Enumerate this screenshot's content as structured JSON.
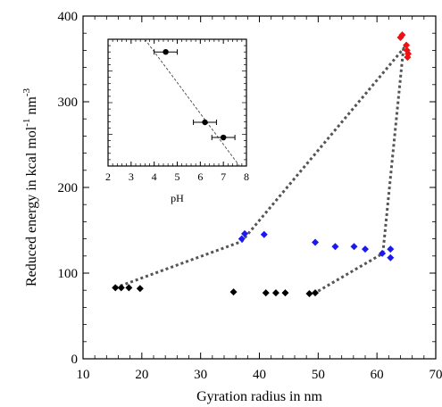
{
  "chart_data": [
    {
      "type": "scatter",
      "xlabel": "Gyration radius in nm",
      "ylabel": {
        "main": "Reduced energy in kcal mol",
        "sup1": "-1",
        "mid": " nm",
        "sup2": "-3"
      },
      "xlim": [
        10,
        70
      ],
      "ylim": [
        0,
        400
      ],
      "xticks": [
        10,
        20,
        30,
        40,
        50,
        60,
        70
      ],
      "yticks": [
        0,
        100,
        200,
        300,
        400
      ],
      "grid": false,
      "series": [
        {
          "color": "#000000",
          "marker": "diamond",
          "points": [
            [
              15.5,
              83
            ],
            [
              16.5,
              83
            ],
            [
              17.8,
              83
            ],
            [
              19.7,
              82
            ],
            [
              35.6,
              78
            ],
            [
              41.1,
              77
            ],
            [
              42.8,
              77
            ],
            [
              44.4,
              77
            ],
            [
              48.5,
              76
            ],
            [
              49.5,
              77
            ]
          ]
        },
        {
          "color": "#1a1aee",
          "marker": "diamond",
          "points": [
            [
              37.0,
              140
            ],
            [
              37.5,
              146
            ],
            [
              40.8,
              145
            ],
            [
              49.5,
              136
            ],
            [
              52.9,
              131
            ],
            [
              56.1,
              131
            ],
            [
              58.0,
              128
            ],
            [
              60.9,
              123
            ],
            [
              62.3,
              128
            ],
            [
              62.3,
              118
            ]
          ]
        },
        {
          "color": "#ee1111",
          "marker": "diamond",
          "points": [
            [
              64.0,
              375
            ],
            [
              64.3,
              378
            ],
            [
              65.0,
              366
            ],
            [
              65.1,
              360
            ],
            [
              65.2,
              352
            ],
            [
              65.3,
              356
            ]
          ]
        }
      ],
      "path_line": {
        "color": "#555555",
        "style": "dotted",
        "points": [
          [
            15.5,
            83
          ],
          [
            37.0,
            137
          ],
          [
            64.5,
            362
          ],
          [
            61.0,
            123
          ],
          [
            49.5,
            77
          ]
        ]
      }
    },
    {
      "type": "scatter",
      "xlabel": "pH",
      "xlim": [
        2,
        8
      ],
      "xticks": [
        2,
        3,
        4,
        5,
        6,
        7,
        8
      ],
      "ylim": [
        0,
        1
      ],
      "yticks": [],
      "grid": false,
      "points": [
        {
          "x": 4.5,
          "y": 0.9,
          "xerr": 0.5
        },
        {
          "x": 6.2,
          "y": 0.345,
          "xerr": 0.5
        },
        {
          "x": 7.0,
          "y": 0.225,
          "xerr": 0.5
        }
      ],
      "fit_line": {
        "color": "#555555",
        "style": "dashed",
        "points": [
          [
            3.6,
            1.0
          ],
          [
            7.7,
            0.0
          ]
        ]
      }
    }
  ]
}
